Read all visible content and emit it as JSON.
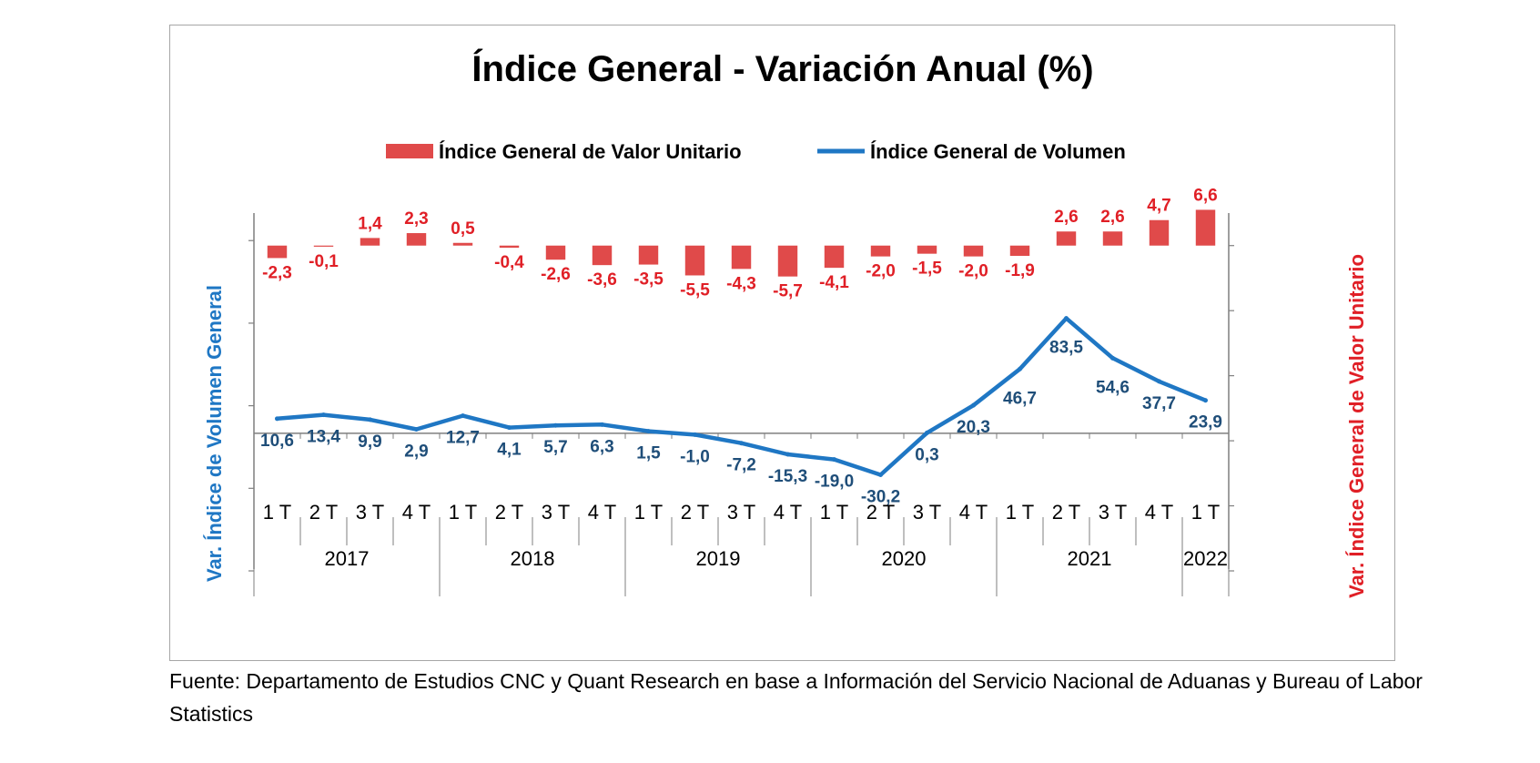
{
  "chart_data": {
    "type": "bar+line",
    "title": "Índice General - Variación Anual (%)",
    "left_axis_label": "Var. Índice de Volumen General",
    "right_axis_label": "Var. Índice General de Valor Unitario",
    "source": "Fuente: Departamento de Estudios CNC y Quant Research en base a Información del Servicio Nacional de Aduanas y Bureau of Labor Statistics",
    "legend_placement": "top-center",
    "categories": [
      "1 T",
      "2 T",
      "3 T",
      "4 T",
      "1 T",
      "2 T",
      "3 T",
      "4 T",
      "1 T",
      "2 T",
      "3 T",
      "4 T",
      "1 T",
      "2 T",
      "3 T",
      "4 T",
      "1 T",
      "2 T",
      "3 T",
      "4 T",
      "1 T"
    ],
    "years": [
      {
        "label": "2017",
        "quarters": 4
      },
      {
        "label": "2018",
        "quarters": 4
      },
      {
        "label": "2019",
        "quarters": 4
      },
      {
        "label": "2020",
        "quarters": 4
      },
      {
        "label": "2021",
        "quarters": 4
      },
      {
        "label": "2022",
        "quarters": 1
      }
    ],
    "series": [
      {
        "name": "Índice General de Valor Unitario",
        "kind": "bar",
        "axis": "right",
        "color": "#e04a4a",
        "label_color": "#e01f26",
        "values": [
          -2.3,
          -0.1,
          1.4,
          2.3,
          0.5,
          -0.4,
          -2.6,
          -3.6,
          -3.5,
          -5.5,
          -4.3,
          -5.7,
          -4.1,
          -2.0,
          -1.5,
          -2.0,
          -1.9,
          2.6,
          2.6,
          4.7,
          6.6
        ],
        "labels": [
          "-2,3",
          "-0,1",
          "1,4",
          "2,3",
          "0,5",
          "-0,4",
          "-2,6",
          "-3,6",
          "-3,5",
          "-5,5",
          "-4,3",
          "-5,7",
          "-4,1",
          "-2,0",
          "-1,5",
          "-2,0",
          "-1,9",
          "2,6",
          "2,6",
          "4,7",
          "6,6"
        ]
      },
      {
        "name": "Índice General de Volumen",
        "kind": "line",
        "axis": "left",
        "color": "#1f77c4",
        "label_color": "#1f4e79",
        "values": [
          10.6,
          13.4,
          9.9,
          2.9,
          12.7,
          4.1,
          5.7,
          6.3,
          1.5,
          -1.0,
          -7.2,
          -15.3,
          -19.0,
          -30.2,
          0.3,
          20.3,
          46.7,
          83.5,
          54.6,
          37.7,
          23.9
        ],
        "labels": [
          "10,6",
          "13,4",
          "9,9",
          "2,9",
          "12,7",
          "4,1",
          "5,7",
          "6,3",
          "1,5",
          "-1,0",
          "-7,2",
          "-15,3",
          "-19,0",
          "-30,2",
          "0,3",
          "20,3",
          "46,7",
          "83,5",
          "54,6",
          "37,7",
          "23,9"
        ]
      }
    ],
    "left_axis": {
      "min": -100,
      "max": 160,
      "tick_step": 60,
      "tick_labels_shown": false
    },
    "right_axis": {
      "min": -60,
      "max": 6,
      "tick_step": 12,
      "tick_labels_shown": false
    }
  }
}
